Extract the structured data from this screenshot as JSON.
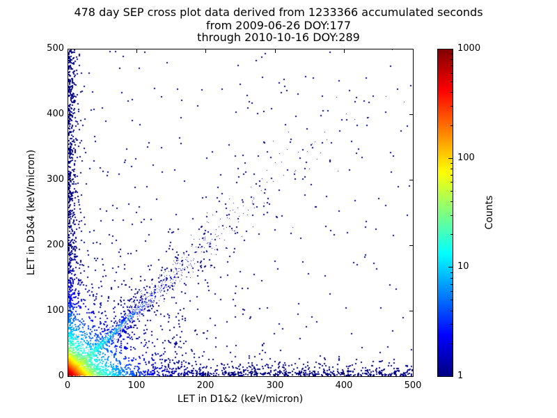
{
  "chart_data": {
    "type": "scatter",
    "title": "478 day SEP cross plot data derived from 1233366 accumulated seconds",
    "subtitle1": "from 2009-06-26 DOY:177",
    "subtitle2": "through 2010-10-16 DOY:289",
    "xlabel": "LET in D1&2 (keV/micron)",
    "ylabel": "LET in D3&4 (keV/micron)",
    "xlim": [
      0,
      500
    ],
    "ylim": [
      0,
      500
    ],
    "xticks": [
      0,
      100,
      200,
      300,
      400,
      500
    ],
    "yticks": [
      0,
      100,
      200,
      300,
      400,
      500
    ],
    "grid": false,
    "background": "#ffffff",
    "axis_color": "#000000",
    "point_color_low": "#000080",
    "colorbar": {
      "label": "Counts",
      "scale": "log",
      "range": [
        1,
        1000
      ],
      "ticks": [
        1,
        10,
        100,
        1000
      ],
      "minor_ticks_per_decade": [
        2,
        3,
        4,
        5,
        6,
        7,
        8,
        9
      ],
      "colormap": "jet",
      "gradient_stops": [
        {
          "pos": 0,
          "color": "#000080"
        },
        {
          "pos": 0.125,
          "color": "#0000ff"
        },
        {
          "pos": 0.375,
          "color": "#00ffff"
        },
        {
          "pos": 0.625,
          "color": "#ffff00"
        },
        {
          "pos": 0.875,
          "color": "#ff0000"
        },
        {
          "pos": 1,
          "color": "#800000"
        }
      ]
    },
    "distribution": {
      "note": "Density scatter of SEP events: intense hotspot at the origin reaching ~1000 counts (red/orange/yellow core fading through green and cyan), a cyan-to-blue ridge along the y=x diagonal extending to 500, dense single-count (dark blue) clutter hugging both axes and the lower-left region, and sparse isolated single-count events across the field.",
      "seed": 42,
      "clusters": [
        {
          "name": "far-field",
          "type": "uniform",
          "n": 230,
          "max": 500,
          "size": 2
        },
        {
          "name": "near-field",
          "type": "exp2",
          "n": 950,
          "scale_x": 70,
          "scale_y": 70,
          "size": 2
        },
        {
          "name": "bottom-band",
          "type": "band",
          "n": 800,
          "axis": "x",
          "scale_thin": 7,
          "uniform_max": 500,
          "size": 2
        },
        {
          "name": "left-column",
          "type": "band",
          "n": 750,
          "axis": "y",
          "scale_thin": 5,
          "uniform_max": 500,
          "size": 2
        },
        {
          "name": "diagonal-fan",
          "type": "diag",
          "n": 450,
          "scale_t": 150,
          "jitter_base": 8,
          "jitter_growth": 0.08,
          "size": 2
        },
        {
          "name": "diagonal-ridge",
          "type": "diag",
          "n": 1400,
          "scale_t": 70,
          "jitter_base": 0.7,
          "jitter_growth": 0.05,
          "size": 1
        },
        {
          "name": "origin-blob",
          "type": "exp2",
          "n": 5000,
          "scale_x": 11,
          "scale_y": 11,
          "size": 1
        }
      ],
      "density_model": {
        "base": 1,
        "terms": [
          {
            "kind": "corner",
            "amp": 900,
            "scale": 10
          },
          {
            "kind": "corner",
            "amp": 80,
            "scale": 30
          },
          {
            "kind": "diag",
            "amp": 25,
            "width": 4,
            "decay": 55
          }
        ]
      }
    }
  }
}
